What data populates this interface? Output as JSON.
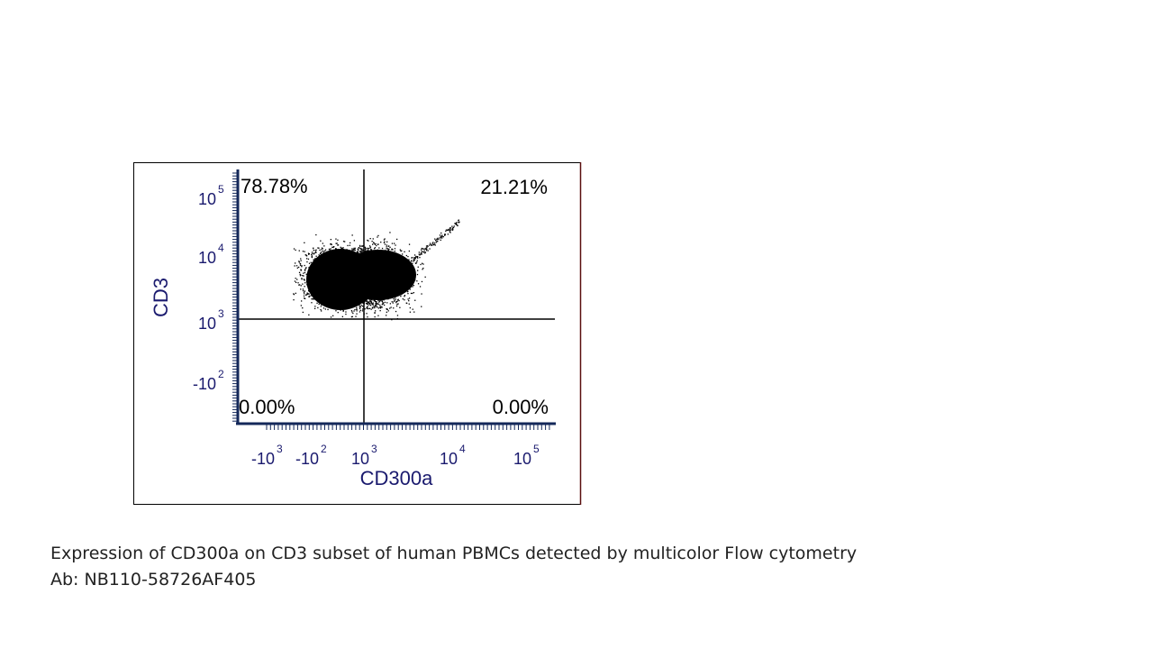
{
  "figure": {
    "quadrants": {
      "upper_left": "78.78%",
      "upper_right": "21.21%",
      "lower_left": "0.00%",
      "lower_right": "0.00%"
    },
    "x_label": "CD300a",
    "y_label": "CD3",
    "x_ticks": [
      {
        "base": "-10",
        "exponent": "3"
      },
      {
        "base": "-10",
        "exponent": "2"
      },
      {
        "base": "10",
        "exponent": "3"
      },
      {
        "base": "10",
        "exponent": "4"
      },
      {
        "base": "10",
        "exponent": "5"
      }
    ],
    "y_ticks": [
      {
        "base": "10",
        "exponent": "5"
      },
      {
        "base": "10",
        "exponent": "4"
      },
      {
        "base": "10",
        "exponent": "3"
      },
      {
        "base": "-10",
        "exponent": "2"
      }
    ]
  },
  "caption": [
    "Expression of CD300a on CD3 subset of human PBMCs detected by multicolor Flow cytometry",
    "Ab: NB110-58726AF405"
  ]
}
